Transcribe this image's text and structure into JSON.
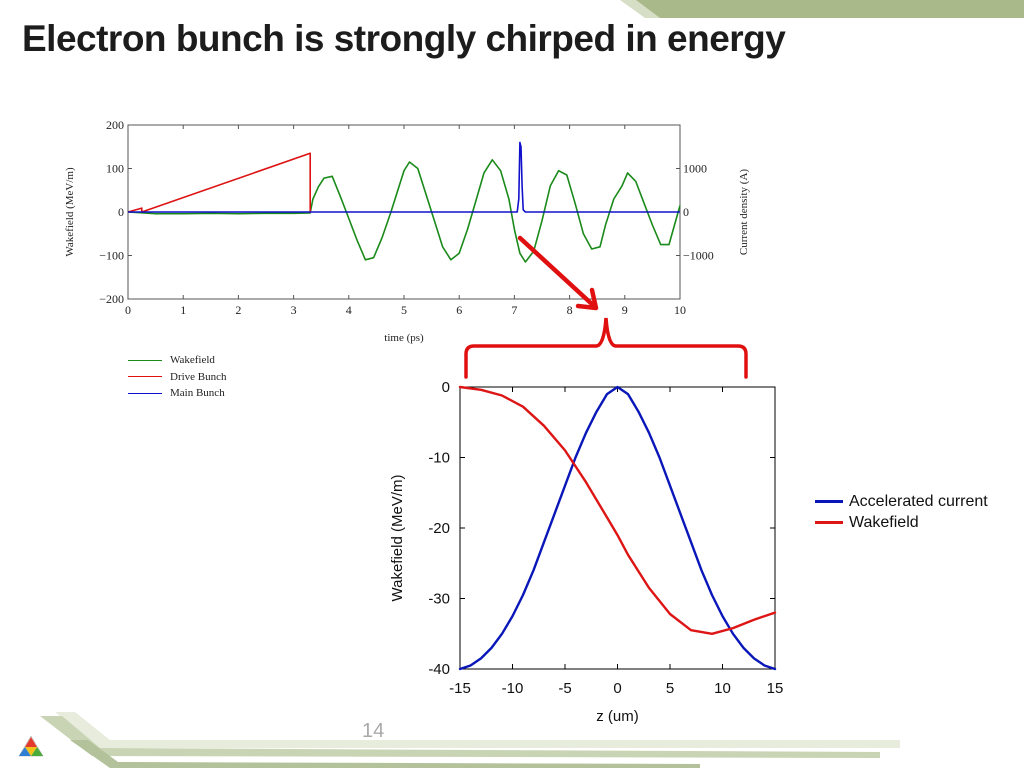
{
  "slide": {
    "title": "Electron bunch is strongly chirped in energy",
    "page_number": "14"
  },
  "colors": {
    "wakefield_top": "#1a8a1a",
    "drive_bunch": "#dd1111",
    "main_bunch": "#1111cc",
    "accelerated_current": "#0a17b8",
    "wakefield_bottom": "#dd1515",
    "callout": "#e01010",
    "deco_green": "#a9b98a"
  },
  "chart_data": [
    {
      "type": "line",
      "title": "",
      "xlabel": "time (ps)",
      "ylabel": "Wakefield (MeV/m)",
      "y2label": "Current density (A)",
      "xlim": [
        0,
        10
      ],
      "ylim": [
        -200,
        200
      ],
      "y2lim": [
        -2000,
        2000
      ],
      "xticks": [
        "0",
        "1",
        "2",
        "3",
        "4",
        "5",
        "6",
        "7",
        "8",
        "9",
        "10"
      ],
      "yticks": [
        "200",
        "100",
        "0",
        "−100",
        "−200"
      ],
      "y2ticks": [
        "1000",
        "0",
        "−1000"
      ],
      "grid": false,
      "legend": "below-left",
      "series": [
        {
          "name": "Wakefield",
          "axis": "left",
          "color": "#1a8a1a",
          "x": [
            0,
            0.5,
            1,
            1.5,
            2,
            2.5,
            3,
            3.3,
            3.35,
            3.45,
            3.55,
            3.7,
            3.85,
            4.0,
            4.15,
            4.3,
            4.45,
            4.6,
            4.75,
            4.9,
            5.0,
            5.1,
            5.25,
            5.4,
            5.55,
            5.7,
            5.85,
            6.0,
            6.15,
            6.3,
            6.45,
            6.6,
            6.75,
            6.9,
            7.0,
            7.1,
            7.2,
            7.35,
            7.5,
            7.65,
            7.8,
            7.95,
            8.1,
            8.25,
            8.4,
            8.55,
            8.65,
            8.8,
            8.95,
            9.05,
            9.2,
            9.35,
            9.5,
            9.65,
            9.8,
            9.9,
            10
          ],
          "y": [
            0,
            -4,
            -4,
            -3,
            -4,
            -3,
            -3,
            -2,
            30,
            58,
            78,
            82,
            35,
            -15,
            -65,
            -110,
            -105,
            -60,
            -5,
            55,
            95,
            115,
            100,
            40,
            -20,
            -80,
            -110,
            -95,
            -40,
            25,
            90,
            120,
            95,
            30,
            -40,
            -95,
            -115,
            -90,
            -20,
            60,
            95,
            85,
            20,
            -50,
            -85,
            -80,
            -30,
            30,
            60,
            90,
            70,
            20,
            -30,
            -75,
            -75,
            -30,
            15
          ]
        },
        {
          "name": "Drive Bunch",
          "axis": "left",
          "color": "#dd1111",
          "x": [
            0,
            0.25,
            0.25,
            3.3,
            3.3
          ],
          "y": [
            0,
            9,
            0,
            135,
            -2
          ]
        },
        {
          "name": "Main Bunch",
          "axis": "right",
          "color": "#1111cc",
          "x": [
            0,
            7.05,
            7.08,
            7.1,
            7.12,
            7.14,
            7.16,
            7.2,
            10
          ],
          "y": [
            0,
            0,
            300,
            1600,
            1500,
            600,
            50,
            0,
            0
          ]
        }
      ]
    },
    {
      "type": "line",
      "title": "",
      "xlabel": "z (um)",
      "ylabel": "Wakefield (MeV/m)",
      "xlim": [
        -15,
        15
      ],
      "ylim": [
        -40,
        0
      ],
      "xticks": [
        "-15",
        "-10",
        "-5",
        "0",
        "5",
        "10",
        "15"
      ],
      "yticks": [
        "0",
        "-10",
        "-20",
        "-30",
        "-40"
      ],
      "grid": false,
      "legend": "right",
      "series": [
        {
          "name": "Accelerated current",
          "color": "#0a17b8",
          "x": [
            -15,
            -14,
            -13,
            -12,
            -11,
            -10,
            -9,
            -8,
            -7,
            -6,
            -5,
            -4,
            -3,
            -2,
            -1,
            0,
            1,
            2,
            3,
            4,
            5,
            6,
            7,
            8,
            9,
            10,
            11,
            12,
            13,
            14,
            15
          ],
          "y": [
            -40,
            -39.5,
            -38.5,
            -37,
            -35,
            -32.5,
            -29.5,
            -26,
            -22,
            -18,
            -14,
            -10,
            -6.5,
            -3.5,
            -1,
            0,
            -1,
            -3.5,
            -6.5,
            -10,
            -14,
            -18,
            -22,
            -26,
            -29.5,
            -32.5,
            -35,
            -37,
            -38.5,
            -39.5,
            -40
          ]
        },
        {
          "name": "Wakefield",
          "color": "#dd1515",
          "x": [
            -15,
            -13,
            -11,
            -9,
            -7,
            -5,
            -3,
            -1,
            0,
            1,
            3,
            5,
            7,
            9,
            11,
            13,
            15
          ],
          "y": [
            0,
            -0.4,
            -1.2,
            -2.8,
            -5.5,
            -9,
            -13.5,
            -18.5,
            -21,
            -23.8,
            -28.5,
            -32.2,
            -34.5,
            -35,
            -34.2,
            -33,
            -32
          ]
        }
      ]
    }
  ]
}
